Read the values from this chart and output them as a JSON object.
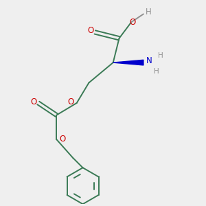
{
  "bg_color": "#efefef",
  "bond_color": "#3a7a55",
  "o_color": "#cc0000",
  "n_color": "#0000cc",
  "h_color": "#909090",
  "line_width": 1.4,
  "figsize": [
    3.0,
    3.0
  ],
  "dpi": 100,
  "xlim": [
    0,
    10
  ],
  "ylim": [
    0,
    10
  ]
}
